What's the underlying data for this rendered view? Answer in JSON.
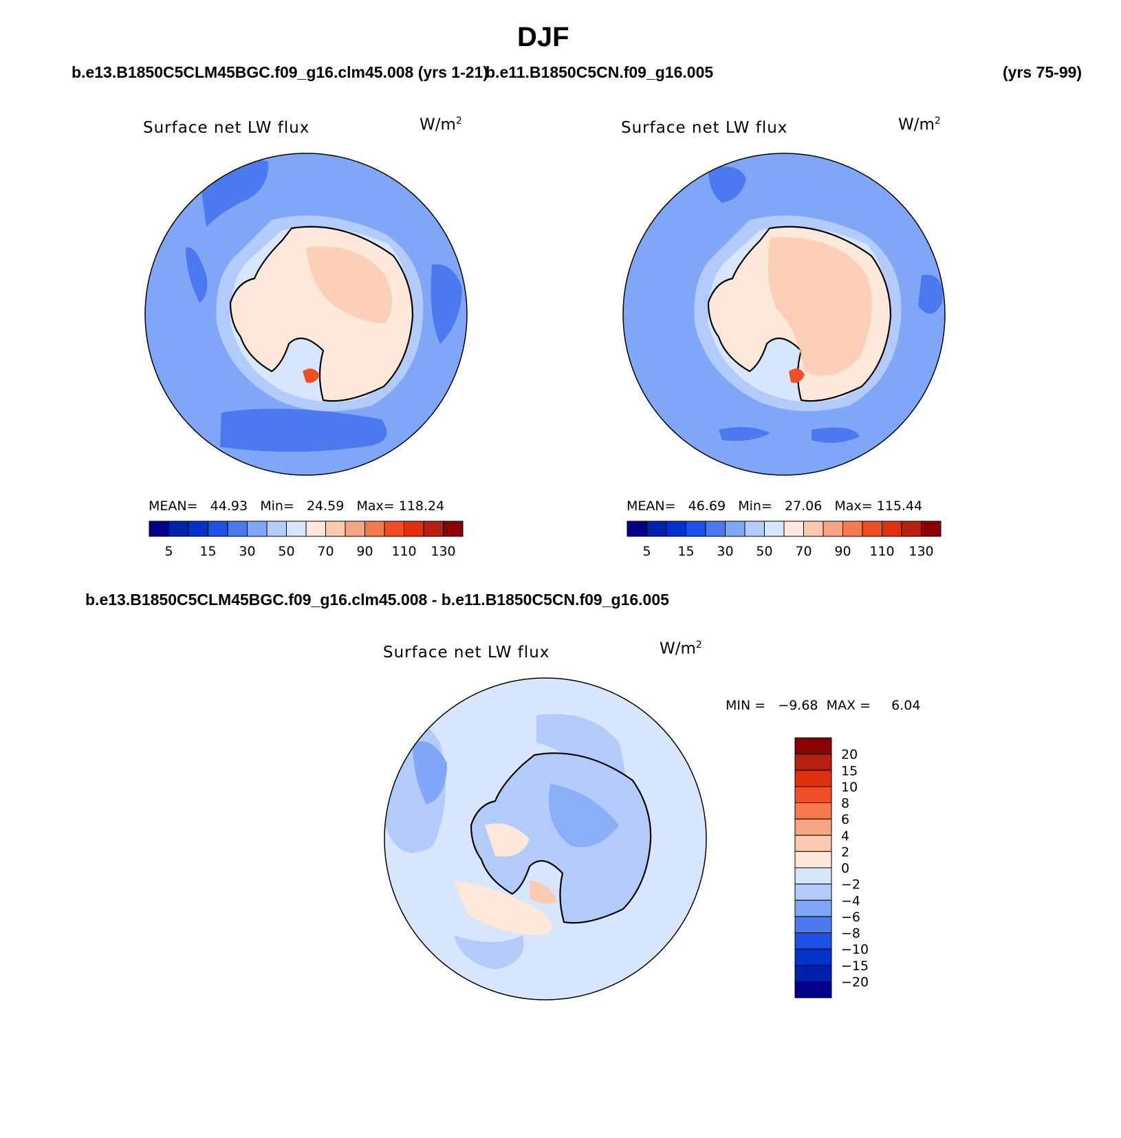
{
  "page_title": "DJF",
  "header": {
    "case1": "b.e13.B1850C5CLM45BGC.f09_g16.clm45.008 (yrs 1-21)",
    "case2": "b.e11.B1850C5CN.f09_g16.005",
    "case2_years": "(yrs 75-99)"
  },
  "diff_title": "b.e13.B1850C5CLM45BGC.f09_g16.clm45.008 - b.e11.B1850C5CN.f09_g16.005",
  "colors": {
    "seq": [
      "#00008b",
      "#0022aa",
      "#0033cc",
      "#1e4fe6",
      "#4a79f0",
      "#7fa6f7",
      "#b3cbfb",
      "#d7e6fd",
      "#fde8da",
      "#fbc8b0",
      "#f7a582",
      "#f57a50",
      "#f04e25",
      "#e03010",
      "#b52010",
      "#8a0000"
    ],
    "ocean_light": "#b3cbfb",
    "ocean_mid": "#7fa6f7",
    "ocean_dark": "#4a79f0",
    "land": "#fde8da",
    "land2": "#fbc8b0",
    "hot": "#f04e25",
    "diff_bg": "#d7e6fd",
    "diff_neg": "#b3cbfb",
    "diff_neg2": "#7fa6f7",
    "diff_pos": "#fde8da",
    "diff_pos2": "#fbc8b0"
  },
  "panel_left": {
    "title": "Surface net LW flux",
    "units": "W/m",
    "units_sup": "2",
    "stats": {
      "mean_label": "MEAN=",
      "mean": "44.93",
      "min_label": "Min=",
      "min": "24.59",
      "max_label": "Max=",
      "max": "118.24"
    },
    "colorbar_labels": [
      "5",
      "15",
      "30",
      "50",
      "70",
      "90",
      "110",
      "130"
    ]
  },
  "panel_right": {
    "title": "Surface net LW flux",
    "units": "W/m",
    "units_sup": "2",
    "stats": {
      "mean_label": "MEAN=",
      "mean": "46.69",
      "min_label": "Min=",
      "min": "27.06",
      "max_label": "Max=",
      "max": "115.44"
    },
    "colorbar_labels": [
      "5",
      "15",
      "30",
      "50",
      "70",
      "90",
      "110",
      "130"
    ]
  },
  "panel_diff": {
    "title": "Surface net LW flux",
    "units": "W/m",
    "units_sup": "2",
    "minmax": "MIN =   −9.68  MAX =     6.04",
    "colorbar_labels": [
      "20",
      "15",
      "10",
      "8",
      "6",
      "4",
      "2",
      "0",
      "−2",
      "−4",
      "−6",
      "−8",
      "−10",
      "−15",
      "−20"
    ]
  }
}
